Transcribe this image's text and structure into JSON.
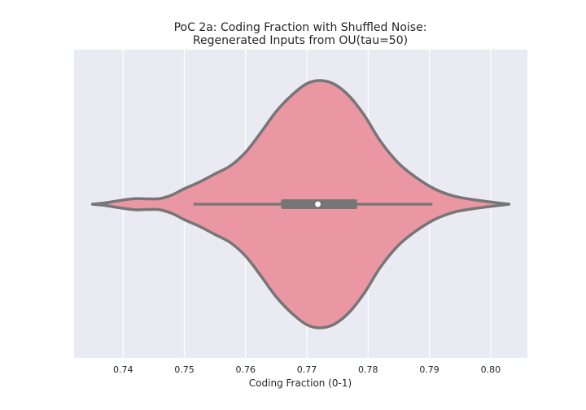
{
  "chart_data": {
    "type": "violin",
    "title_lines": [
      "PoC 2a: Coding Fraction with Shuffled Noise:",
      "Regenerated Inputs from OU(tau=50)"
    ],
    "xlabel": "Coding Fraction (0-1)",
    "ylabel": "",
    "xlim": [
      0.732,
      0.806
    ],
    "xticks": [
      0.74,
      0.75,
      0.76,
      0.77,
      0.78,
      0.79,
      0.8
    ],
    "xtick_labels": [
      "0.74",
      "0.75",
      "0.76",
      "0.77",
      "0.78",
      "0.79",
      "0.80"
    ],
    "grid": true,
    "orientation": "horizontal",
    "violin": {
      "density_profile": [
        [
          0.735,
          0.0
        ],
        [
          0.737,
          0.01
        ],
        [
          0.7395,
          0.03
        ],
        [
          0.742,
          0.045
        ],
        [
          0.744,
          0.043
        ],
        [
          0.746,
          0.045
        ],
        [
          0.748,
          0.075
        ],
        [
          0.75,
          0.125
        ],
        [
          0.7525,
          0.18
        ],
        [
          0.755,
          0.245
        ],
        [
          0.7575,
          0.31
        ],
        [
          0.76,
          0.42
        ],
        [
          0.7625,
          0.58
        ],
        [
          0.765,
          0.75
        ],
        [
          0.7675,
          0.88
        ],
        [
          0.77,
          0.975
        ],
        [
          0.7722,
          1.0
        ],
        [
          0.7745,
          0.97
        ],
        [
          0.777,
          0.87
        ],
        [
          0.7795,
          0.71
        ],
        [
          0.782,
          0.51
        ],
        [
          0.785,
          0.33
        ],
        [
          0.788,
          0.21
        ],
        [
          0.791,
          0.12
        ],
        [
          0.794,
          0.065
        ],
        [
          0.797,
          0.038
        ],
        [
          0.8,
          0.018
        ],
        [
          0.803,
          0.0
        ]
      ],
      "whisker_low": 0.7515,
      "whisker_high": 0.7905,
      "q1": 0.7658,
      "q3": 0.7782,
      "median": 0.7718
    },
    "colors": {
      "axes_background": "#eaeaf2",
      "grid": "#ffffff",
      "violin_fill": "#ea96a3",
      "violin_edge": "#767676",
      "box": "#767676",
      "median_marker": "#ffffff"
    }
  }
}
